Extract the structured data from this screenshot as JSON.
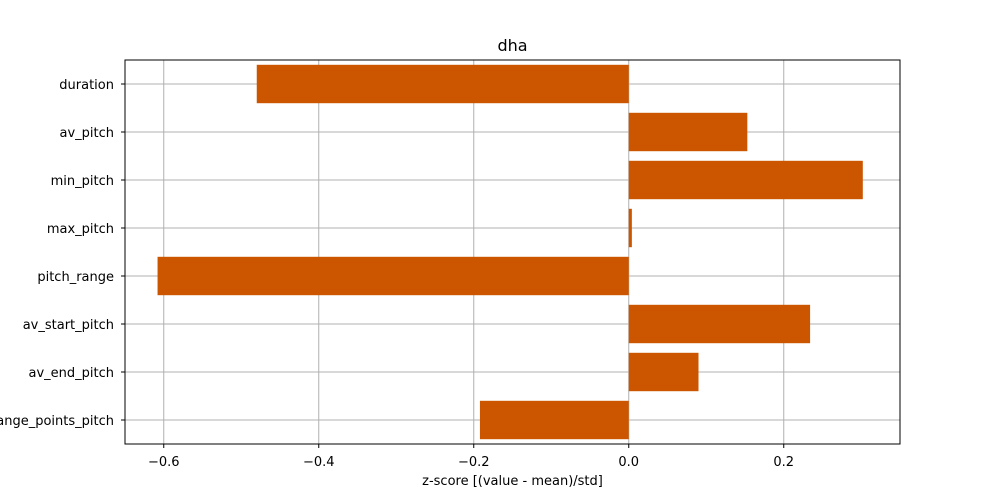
{
  "chart_data": {
    "type": "bar",
    "orientation": "horizontal",
    "title": "dha",
    "xlabel": "z-score [(value - mean)/std]",
    "ylabel": "",
    "categories": [
      "duration",
      "av_pitch",
      "min_pitch",
      "max_pitch",
      "pitch_range",
      "av_start_pitch",
      "av_end_pitch",
      "change_points_pitch"
    ],
    "values": [
      -0.48,
      0.153,
      0.302,
      0.004,
      -0.608,
      0.234,
      0.09,
      -0.192
    ],
    "xlim": [
      -0.65,
      0.35
    ],
    "xticks": [
      -0.6,
      -0.4,
      -0.2,
      0.0,
      0.2
    ],
    "xtick_labels": [
      "−0.6",
      "−0.4",
      "−0.2",
      "0.0",
      "0.2"
    ],
    "grid": true,
    "bar_color": "#cc5500"
  }
}
